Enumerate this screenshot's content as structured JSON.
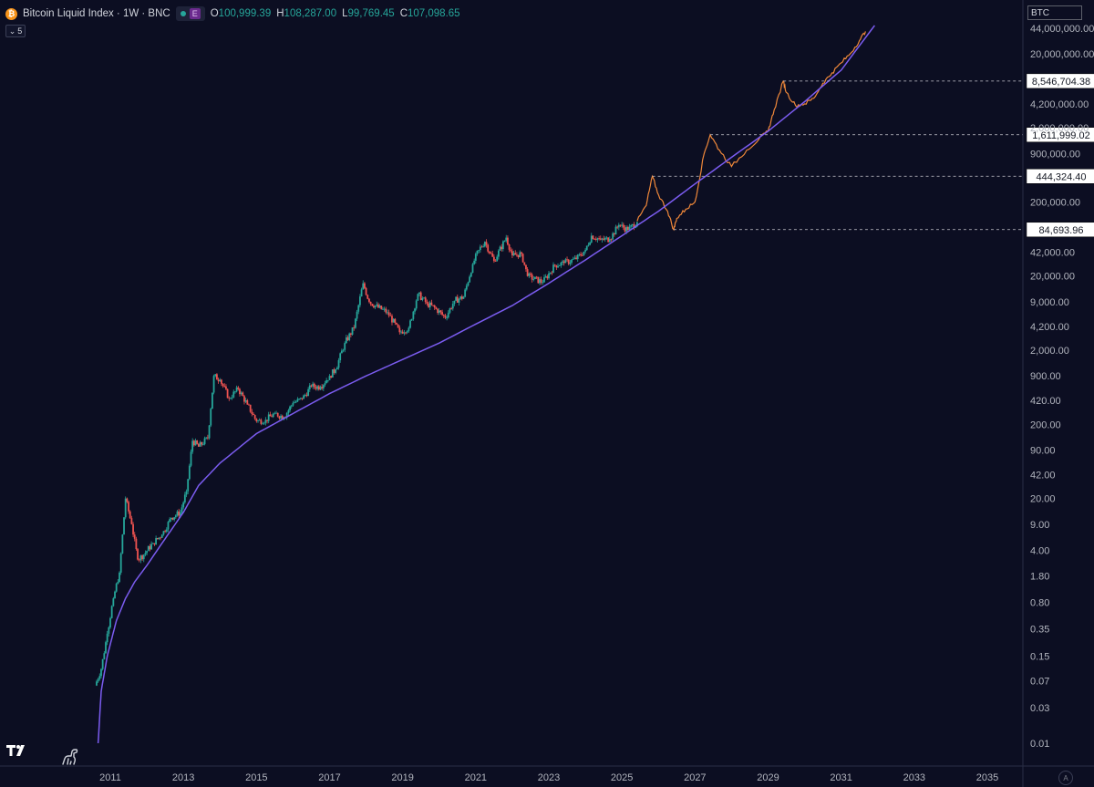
{
  "legend": {
    "symbol_icon": "bitcoin-icon",
    "title": "Bitcoin Liquid Index · 1W · BNC",
    "indicator_badge": "E",
    "open_label": "O",
    "open": "100,999.39",
    "high_label": "H",
    "high": "108,287.00",
    "low_label": "L",
    "low": "99,769.45",
    "close_label": "C",
    "close": "107,098.65"
  },
  "collapse_count": "5",
  "symbol_badge": "BTC",
  "auto_button": "A",
  "colors": {
    "background": "#0c0e22",
    "candle_up": "#26a69a",
    "candle_down": "#ef5350",
    "projection": "#f0883a",
    "power_law": "#7b5cf0",
    "axis_text": "#b2b5be"
  },
  "chart_data": {
    "type": "line",
    "yscale": "log",
    "y_unit": "USD",
    "xlim": [
      "2010-05",
      "2035-12"
    ],
    "ylim": [
      0.007,
      55000000
    ],
    "x_ticks": [
      "2011",
      "2013",
      "2015",
      "2017",
      "2019",
      "2021",
      "2023",
      "2025",
      "2027",
      "2029",
      "2031",
      "2033",
      "2035"
    ],
    "y_ticks": [
      "44,000,000.00",
      "20,000,000.00",
      "4,200,000.00",
      "2,000,000.00",
      "900,000.00",
      "200,000.00",
      "42,000.00",
      "20,000.00",
      "9,000.00",
      "4,200.00",
      "2,000.00",
      "900.00",
      "420.00",
      "200.00",
      "90.00",
      "42.00",
      "20.00",
      "9.00",
      "4.00",
      "1.80",
      "0.80",
      "0.35",
      "0.15",
      "0.07",
      "0.03",
      "0.01"
    ],
    "series": [
      {
        "style": "candles",
        "x": [
          "2010-08",
          "2010-10",
          "2010-12",
          "2011-02",
          "2011-04",
          "2011-06",
          "2011-08",
          "2011-10",
          "2011-12",
          "2012-03",
          "2012-06",
          "2012-09",
          "2012-12",
          "2013-02",
          "2013-04",
          "2013-06",
          "2013-09",
          "2013-11",
          "2014-01",
          "2014-04",
          "2014-07",
          "2014-10",
          "2015-01",
          "2015-04",
          "2015-07",
          "2015-10",
          "2016-01",
          "2016-04",
          "2016-07",
          "2016-10",
          "2017-01",
          "2017-03",
          "2017-06",
          "2017-09",
          "2017-12",
          "2018-02",
          "2018-05",
          "2018-08",
          "2018-12",
          "2019-03",
          "2019-06",
          "2019-09",
          "2019-12",
          "2020-03",
          "2020-06",
          "2020-09",
          "2020-12",
          "2021-02",
          "2021-04",
          "2021-07",
          "2021-11",
          "2022-01",
          "2022-04",
          "2022-06",
          "2022-11",
          "2023-03",
          "2023-06",
          "2023-10",
          "2024-01",
          "2024-03",
          "2024-06",
          "2024-09",
          "2024-12",
          "2025-03",
          "2025-06"
        ],
        "y": [
          0.06,
          0.1,
          0.3,
          0.9,
          2.0,
          20,
          9,
          3,
          3.5,
          5,
          6.5,
          11,
          13,
          25,
          120,
          100,
          130,
          900,
          800,
          450,
          600,
          370,
          220,
          230,
          280,
          250,
          390,
          440,
          650,
          640,
          900,
          1100,
          2500,
          4000,
          16000,
          9000,
          7500,
          6500,
          3500,
          4000,
          11500,
          8500,
          7200,
          5500,
          9300,
          10500,
          29000,
          45000,
          58000,
          32000,
          66000,
          38000,
          40000,
          20000,
          16500,
          28000,
          30000,
          34000,
          45000,
          70000,
          62000,
          63000,
          98000,
          84000,
          107098.65
        ]
      },
      {
        "style": "projection",
        "x": [
          "2025-06",
          "2025-09",
          "2025-11",
          "2026-01",
          "2026-04",
          "2026-06",
          "2026-07",
          "2026-10",
          "2027-01",
          "2027-04",
          "2027-06",
          "2027-09",
          "2028-01",
          "2028-06",
          "2028-10",
          "2029-01",
          "2029-03",
          "2029-06",
          "2029-07",
          "2029-10",
          "2030-01",
          "2030-04",
          "2030-07",
          "2030-10",
          "2031-01",
          "2031-04",
          "2031-07",
          "2031-09"
        ],
        "y": [
          110000,
          180000,
          444324.4,
          250000,
          150000,
          84693.96,
          120000,
          160000,
          200000,
          900000,
          1611999.02,
          1000000,
          600000,
          1000000,
          1400000,
          1800000,
          3500000,
          8546704.38,
          6000000,
          4000000,
          4200000,
          5000000,
          8000000,
          11000000,
          15000000,
          20000000,
          30000000,
          40000000
        ]
      },
      {
        "style": "power-law",
        "x": [
          "2010-09",
          "2010-10",
          "2010-12",
          "2011-03",
          "2011-06",
          "2011-09",
          "2012-01",
          "2012-06",
          "2013-01",
          "2013-06",
          "2014-01",
          "2015-01",
          "2016-01",
          "2017-01",
          "2018-01",
          "2019-01",
          "2020-01",
          "2021-01",
          "2022-01",
          "2023-01",
          "2024-01",
          "2025-01",
          "2026-01",
          "2027-01",
          "2028-01",
          "2029-01",
          "2030-01",
          "2031-01",
          "2031-12"
        ],
        "y": [
          0.01,
          0.05,
          0.15,
          0.45,
          0.9,
          1.5,
          2.5,
          5,
          13,
          30,
          60,
          150,
          280,
          520,
          900,
          1500,
          2500,
          4500,
          8000,
          16000,
          33000,
          70000,
          150000,
          350000,
          800000,
          1800000,
          4500000,
          12000000,
          48000000
        ]
      }
    ],
    "price_markers": [
      "8,546,704.38",
      "1,611,999.02",
      "444,324.40",
      "84,693.96"
    ],
    "marker_values": [
      8546704.38,
      1611999.02,
      444324.4,
      84693.96
    ],
    "marker_dates": [
      "2029-06",
      "2027-06",
      "2025-11",
      "2026-06"
    ],
    "grid": false,
    "legend_position": "top-left"
  }
}
